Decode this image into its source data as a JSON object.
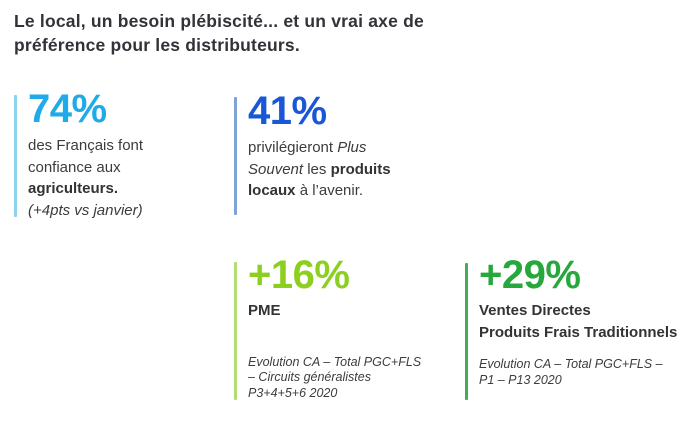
{
  "slide": {
    "title": {
      "line1": "Le local, un besoin plébiscité... et un vrai axe de",
      "line2": "préférence pour les distributeurs.",
      "color": "#323238"
    },
    "stats": [
      {
        "id": "confiance-agriculteurs",
        "value": "74%",
        "accent_color": "#1faae8",
        "bar_color": "#8fd1f0",
        "desc": {
          "line1": "des Français font",
          "line2": "confiance aux",
          "line3_bold": "agriculteurs.",
          "line4_italic": "(+4pts vs janvier)"
        }
      },
      {
        "id": "privilegieront-produits-locaux",
        "value": "41%",
        "accent_color": "#1a57d6",
        "bar_color": "#7fa3d6",
        "desc": {
          "run1": "privilégieront ",
          "run2_italic": "Plus",
          "run3_italic": "Souvent",
          "run4": " les ",
          "run5_bold": "produits",
          "run6_bold": "locaux",
          "run7": " à l’avenir."
        }
      },
      {
        "id": "evolution-pme",
        "value": "+16%",
        "accent_color": "#8ccf1f",
        "bar_color": "#b4dc76",
        "label": "PME",
        "caption": {
          "line1": "Evolution CA – Total PGC+FLS",
          "line2": "– Circuits généralistes",
          "line3": "P3+4+5+6 2020"
        }
      },
      {
        "id": "evolution-ventes-directes",
        "value": "+29%",
        "accent_color": "#27a83c",
        "bar_color": "#43ad55",
        "label": {
          "line1": "Ventes Directes",
          "line2": "Produits Frais Traditionnels"
        },
        "caption": {
          "line1": "Evolution CA – Total PGC+FLS –",
          "line2": "P1 – P13 2020"
        }
      }
    ]
  }
}
